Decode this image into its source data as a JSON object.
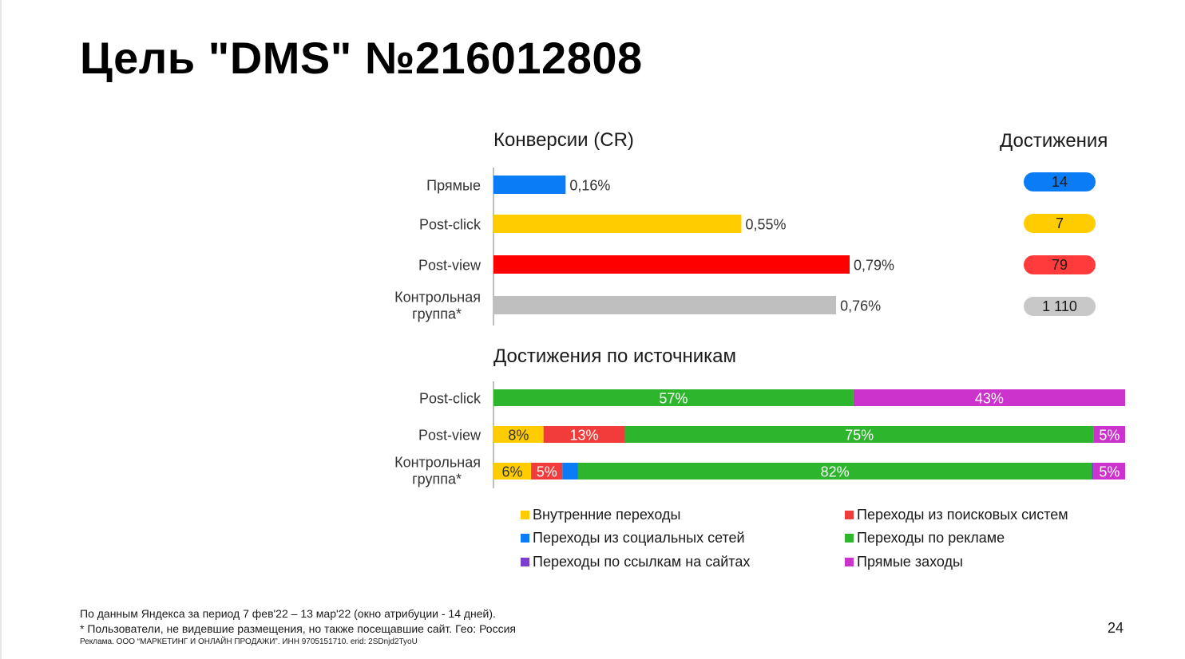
{
  "slide": {
    "title": "Цель \"DMS\" №216012808",
    "page_number": "24"
  },
  "cr_section": {
    "title": "Конверсии (CR)",
    "achievements_title": "Достижения"
  },
  "sources_section": {
    "title": "Достижения по источникам"
  },
  "chart_data": [
    {
      "type": "bar",
      "orientation": "horizontal",
      "title": "Конверсии (CR)",
      "categories": [
        "Прямые",
        "Post-click",
        "Post-view",
        "Контрольная группа*"
      ],
      "values": [
        0.16,
        0.55,
        0.79,
        0.76
      ],
      "value_labels": [
        "0,16%",
        "0,55%",
        "0,79%",
        "0,76%"
      ],
      "colors": [
        "#0a7cf5",
        "#ffcc00",
        "#ff0000",
        "#bfbfbf"
      ],
      "xlim": [
        0,
        0.8
      ],
      "achievements": [
        "14",
        "7",
        "79",
        "1 110"
      ],
      "achievement_colors": [
        "#0a7cf5",
        "#ffcc00",
        "#ff3b3b",
        "#c8c8c8"
      ]
    },
    {
      "type": "bar",
      "orientation": "horizontal",
      "stacked": true,
      "percent": true,
      "title": "Достижения по источникам",
      "categories": [
        "Post-click",
        "Post-view",
        "Контрольная группа*"
      ],
      "series": [
        {
          "name": "Внутренние переходы",
          "color": "#ffcc00",
          "values": [
            0,
            8,
            6
          ],
          "labels": [
            "",
            "8%",
            "6%"
          ]
        },
        {
          "name": "Переходы из поисковых систем",
          "color": "#f23b3b",
          "values": [
            0,
            13,
            5
          ],
          "labels": [
            "",
            "13%",
            "5%"
          ]
        },
        {
          "name": "Переходы из социальных сетей",
          "color": "#0a7cf5",
          "values": [
            0,
            0,
            2.5
          ],
          "labels": [
            "",
            "",
            ""
          ]
        },
        {
          "name": "Переходы по рекламе",
          "color": "#2db52d",
          "values": [
            57,
            75,
            82
          ],
          "labels": [
            "57%",
            "75%",
            "82%"
          ]
        },
        {
          "name": "Переходы по ссылкам на сайтах",
          "color": "#7b3fd0",
          "values": [
            0,
            0,
            0.3
          ],
          "labels": [
            "",
            "",
            ""
          ]
        },
        {
          "name": "Прямые заходы",
          "color": "#cc33cc",
          "values": [
            43,
            5,
            5
          ],
          "labels": [
            "43%",
            "5%",
            "5%"
          ]
        }
      ]
    }
  ],
  "footer": {
    "line1": "По данным Яндекса за период 7 фев'22 – 13 мар'22 (окно атрибуции - 14 дней).",
    "line2": "* Пользователи, не видевшие размещения, но также посещавшие сайт. Гео: Россия",
    "line3": "Реклама. ООО “МАРКЕТИНГ И ОНЛАЙН ПРОДАЖИ”. ИНН 9705151710. erid: 2SDnjd2TyoU"
  }
}
